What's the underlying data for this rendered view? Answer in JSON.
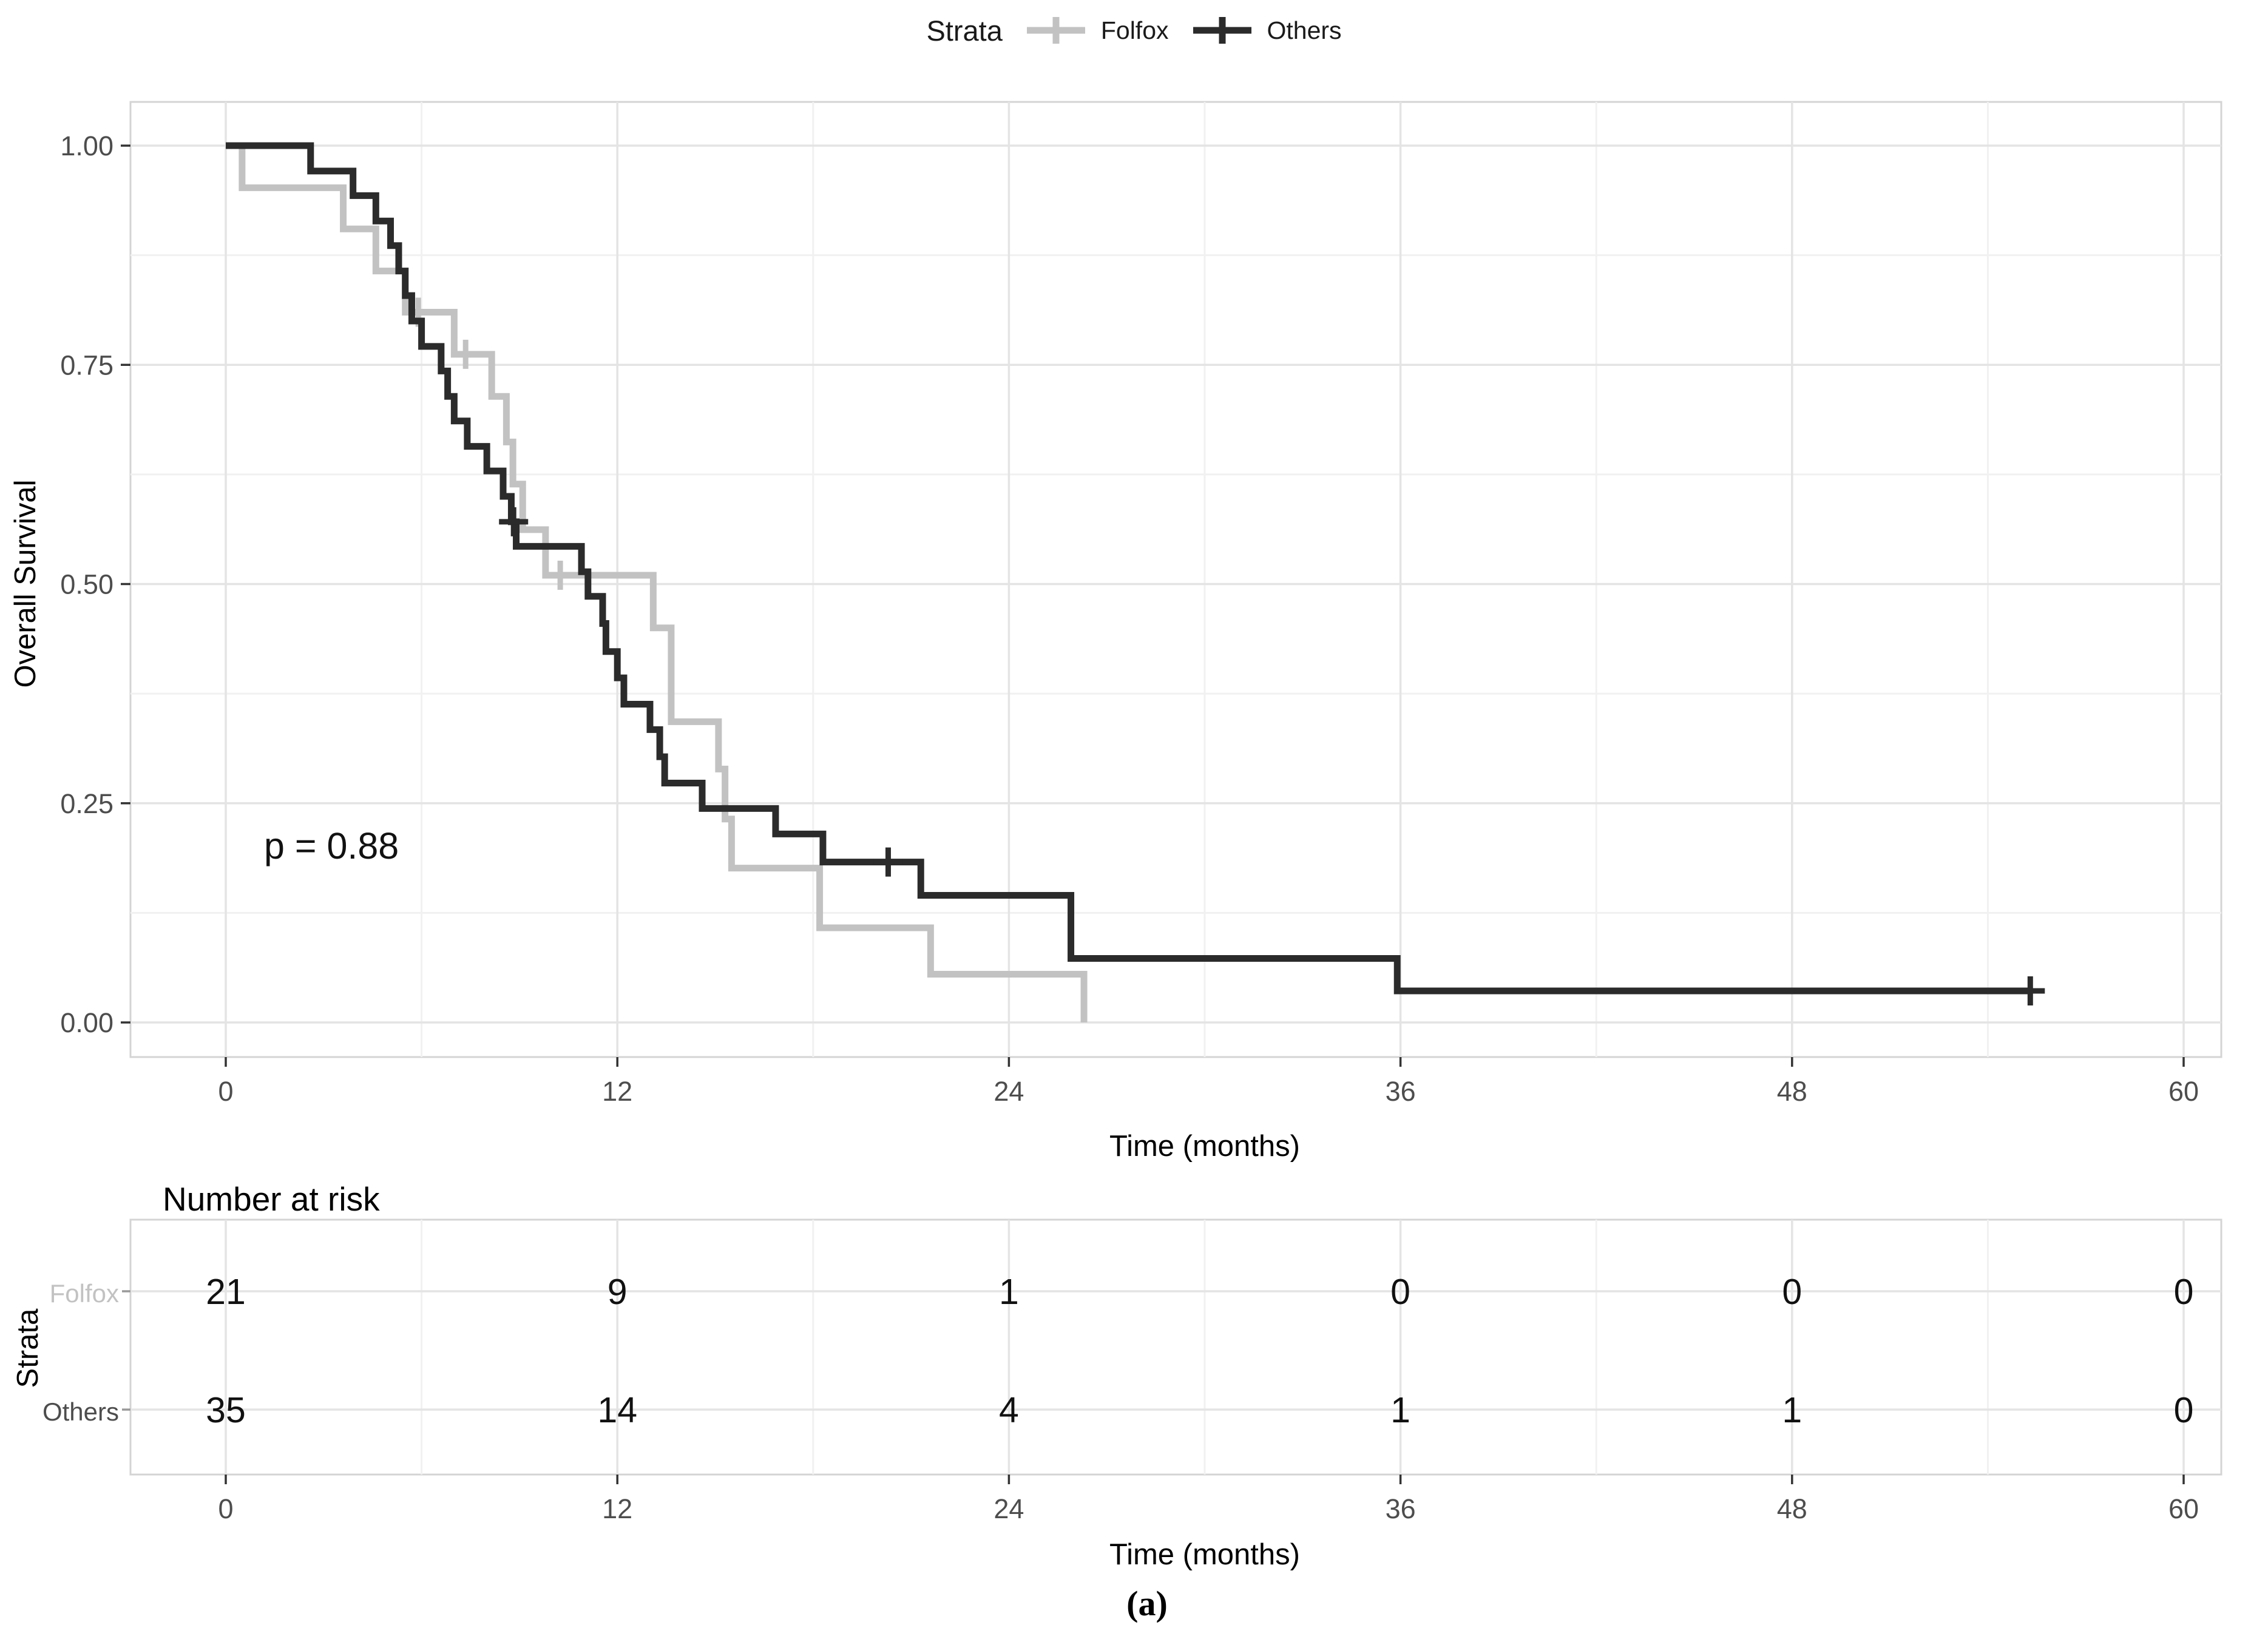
{
  "figure": {
    "caption": "(a)"
  },
  "legend": {
    "title": "Strata",
    "entries": [
      {
        "label": "Folfox",
        "color": "#c2c2c2"
      },
      {
        "label": "Others",
        "color": "#2b2b2b"
      }
    ]
  },
  "chart": {
    "ylabel": "Overall Survival",
    "xlabel": "Time (months)",
    "pvalue_text": "p = 0.88"
  },
  "chart_data": {
    "type": "line",
    "subtype": "kaplan-meier-step",
    "title": "",
    "xlabel": "Time (months)",
    "ylabel": "Overall Survival",
    "xlim": [
      0,
      60
    ],
    "ylim": [
      0.0,
      1.0
    ],
    "x_ticks": [
      0,
      12,
      24,
      36,
      48,
      60
    ],
    "x_minor_ticks": [
      6,
      18,
      30,
      42,
      54
    ],
    "y_ticks": [
      0.0,
      0.25,
      0.5,
      0.75,
      1.0
    ],
    "y_tick_labels": [
      "0.00",
      "0.25",
      "0.50",
      "0.75",
      "1.00"
    ],
    "y_minor_ticks": [
      0.125,
      0.375,
      0.625,
      0.875
    ],
    "grid": true,
    "legend_position": "top",
    "annotation": {
      "text": "p = 0.88",
      "x": 1.3,
      "y": 0.2
    },
    "series": [
      {
        "name": "Folfox",
        "color": "#c2c2c2",
        "end_time": 26.3,
        "points": [
          [
            0,
            1.0
          ],
          [
            0.5,
            0.952
          ],
          [
            3.6,
            0.905
          ],
          [
            4.6,
            0.857
          ],
          [
            5.5,
            0.81
          ],
          [
            7.0,
            0.762
          ],
          [
            8.15,
            0.714
          ],
          [
            8.6,
            0.662
          ],
          [
            8.8,
            0.614
          ],
          [
            9.1,
            0.562
          ],
          [
            9.8,
            0.51
          ],
          [
            13.1,
            0.45
          ],
          [
            13.65,
            0.343
          ],
          [
            15.1,
            0.289
          ],
          [
            15.3,
            0.232
          ],
          [
            15.5,
            0.176
          ],
          [
            18.2,
            0.108
          ],
          [
            21.6,
            0.055
          ],
          [
            26.3,
            0.0
          ]
        ],
        "censor_marks": [
          [
            5.9,
            0.81
          ],
          [
            7.35,
            0.762
          ],
          [
            10.25,
            0.51
          ]
        ]
      },
      {
        "name": "Others",
        "color": "#2b2b2b",
        "end_time": 55.3,
        "points": [
          [
            0,
            1.0
          ],
          [
            2.6,
            0.971
          ],
          [
            3.9,
            0.943
          ],
          [
            4.6,
            0.914
          ],
          [
            5.05,
            0.886
          ],
          [
            5.3,
            0.857
          ],
          [
            5.5,
            0.829
          ],
          [
            5.7,
            0.8
          ],
          [
            6.0,
            0.771
          ],
          [
            6.6,
            0.743
          ],
          [
            6.8,
            0.714
          ],
          [
            7.0,
            0.686
          ],
          [
            7.4,
            0.657
          ],
          [
            8.0,
            0.629
          ],
          [
            8.5,
            0.6
          ],
          [
            8.75,
            0.571
          ],
          [
            8.9,
            0.543
          ],
          [
            10.9,
            0.514
          ],
          [
            11.1,
            0.486
          ],
          [
            11.55,
            0.455
          ],
          [
            11.65,
            0.423
          ],
          [
            12.0,
            0.393
          ],
          [
            12.2,
            0.363
          ],
          [
            13.0,
            0.334
          ],
          [
            13.3,
            0.303
          ],
          [
            13.45,
            0.273
          ],
          [
            14.6,
            0.244
          ],
          [
            16.85,
            0.215
          ],
          [
            18.3,
            0.183
          ],
          [
            21.3,
            0.145
          ],
          [
            25.9,
            0.073
          ],
          [
            35.9,
            0.036
          ]
        ],
        "censor_marks": [
          [
            8.82,
            0.571
          ],
          [
            20.3,
            0.183
          ],
          [
            55.3,
            0.036
          ]
        ]
      }
    ]
  },
  "risk_table": {
    "title": "Number at risk",
    "ylabel": "Strata",
    "xlabel": "Time (months)",
    "times": [
      0,
      12,
      24,
      36,
      48,
      60
    ],
    "rows": [
      {
        "label": "Folfox",
        "color": "#c2c2c2",
        "values": [
          21,
          9,
          1,
          0,
          0,
          0
        ]
      },
      {
        "label": "Others",
        "color": "#4d4d4d",
        "values": [
          35,
          14,
          4,
          1,
          1,
          0
        ]
      }
    ]
  },
  "style": {
    "panel_border": "#d4d4d4",
    "grid_major": "#e4e4e4",
    "grid_minor": "#f1f1f1",
    "tick_color": "#333333",
    "tick_text": "#4d4d4d"
  }
}
